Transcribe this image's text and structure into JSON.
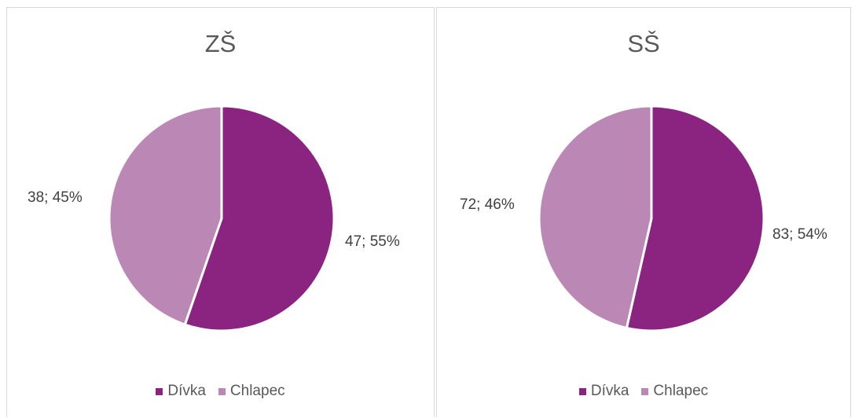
{
  "colors": {
    "divka": "#8b2381",
    "chlapec": "#bb88b5",
    "border": "#d9d9d9"
  },
  "chart_data": [
    {
      "type": "pie",
      "title": "ZŠ",
      "legend_position": "bottom",
      "slices": [
        {
          "name": "Dívka",
          "value": 47,
          "percent": 55,
          "label": "47; 55%",
          "color": "#8b2381"
        },
        {
          "name": "Chlapec",
          "value": 38,
          "percent": 45,
          "label": "38; 45%",
          "color": "#bb88b5"
        }
      ],
      "legend": [
        "Dívka",
        "Chlapec"
      ]
    },
    {
      "type": "pie",
      "title": "SŠ",
      "legend_position": "bottom",
      "slices": [
        {
          "name": "Dívka",
          "value": 83,
          "percent": 54,
          "label": "83; 54%",
          "color": "#8b2381"
        },
        {
          "name": "Chlapec",
          "value": 72,
          "percent": 46,
          "label": "72; 46%",
          "color": "#bb88b5"
        }
      ],
      "legend": [
        "Dívka",
        "Chlapec"
      ]
    }
  ]
}
